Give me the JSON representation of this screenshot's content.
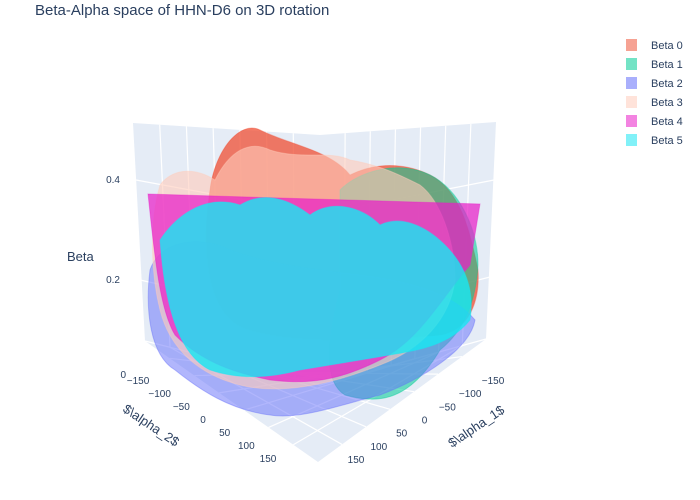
{
  "chart_data": {
    "type": "surface",
    "title": "Beta-Alpha space of HHN-D6 on 3D rotation",
    "xlabel": "$\\alpha_2$",
    "ylabel": "$\\alpha_1$",
    "zlabel": "Beta",
    "x_ticks": [
      "−150",
      "−100",
      "−50",
      "0",
      "50",
      "100",
      "150"
    ],
    "y_ticks": [
      "−150",
      "−100",
      "−50",
      "0",
      "50",
      "100",
      "150"
    ],
    "z_ticks": [
      "0",
      "0.2",
      "0.4"
    ],
    "xlim": [
      -180,
      180
    ],
    "ylim": [
      -180,
      180
    ],
    "zlim": [
      0,
      0.5
    ],
    "legend_position": "top-right",
    "series": [
      {
        "name": "Beta 0",
        "color": "#ef553b"
      },
      {
        "name": "Beta 1",
        "color": "#00cc96"
      },
      {
        "name": "Beta 2",
        "color": "#636efa"
      },
      {
        "name": "Beta 3",
        "color": "#ffccbb"
      },
      {
        "name": "Beta 4",
        "color": "#e91ec8"
      },
      {
        "name": "Beta 5",
        "color": "#19e6f2"
      }
    ]
  }
}
